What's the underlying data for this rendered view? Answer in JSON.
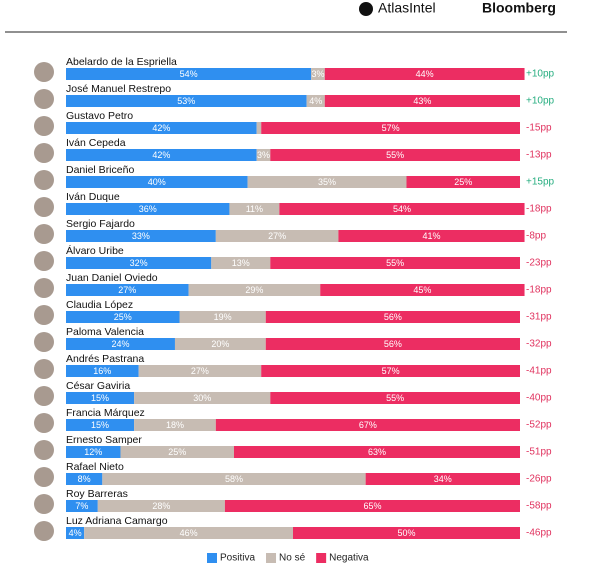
{
  "header": {
    "brand1": "AtlasIntel",
    "brand2": "Bloomberg"
  },
  "chart_data": {
    "type": "stacked-bar-horizontal",
    "categories": [
      "Abelardo de la Espriella",
      "José Manuel Restrepo",
      "Gustavo Petro",
      "Iván Cepeda",
      "Daniel Briceño",
      "Iván Duque",
      "Sergio Fajardo",
      "Álvaro Uribe",
      "Juan Daniel Oviedo",
      "Claudia López",
      "Paloma Valencia",
      "Andrés Pastrana",
      "César Gaviria",
      "Francia Márquez",
      "Ernesto Samper",
      "Rafael Nieto",
      "Roy Barreras",
      "Luz Adriana Camargo"
    ],
    "series": [
      {
        "name": "Positiva",
        "color": "#2f8ff0",
        "values": [
          54,
          53,
          42,
          42,
          40,
          36,
          33,
          32,
          27,
          25,
          24,
          16,
          15,
          15,
          12,
          8,
          7,
          4
        ],
        "value_labels": [
          "54%",
          "53%",
          "42%",
          "42%",
          "40%",
          "36%",
          "33%",
          "32%",
          "27%",
          "25%",
          "24%",
          "16%",
          "15%",
          "15%",
          "12%",
          "8%",
          "7%",
          "4%"
        ]
      },
      {
        "name": "No sé",
        "color": "#c7bcb3",
        "values": [
          3,
          4,
          1,
          3,
          35,
          11,
          27,
          13,
          29,
          19,
          20,
          27,
          30,
          18,
          25,
          58,
          28,
          46
        ],
        "value_labels": [
          "3%",
          "4%",
          null,
          "3%",
          "35%",
          "11%",
          "27%",
          "13%",
          "29%",
          "19%",
          "20%",
          "27%",
          "30%",
          "18%",
          "25%",
          "58%",
          "28%",
          "46%"
        ]
      },
      {
        "name": "Negativa",
        "color": "#ec2d62",
        "values": [
          44,
          43,
          57,
          55,
          25,
          54,
          41,
          55,
          45,
          56,
          56,
          57,
          55,
          67,
          63,
          34,
          65,
          50
        ],
        "value_labels": [
          "44%",
          "43%",
          "57%",
          "55%",
          "25%",
          "54%",
          "41%",
          "55%",
          "45%",
          "56%",
          "56%",
          "57%",
          "55%",
          "67%",
          "63%",
          "34%",
          "65%",
          "50%"
        ]
      }
    ],
    "net_labels": [
      "+10pp",
      "+10pp",
      "-15pp",
      "-13pp",
      "+15pp",
      "-18pp",
      "-8pp",
      "-23pp",
      "-18pp",
      "-31pp",
      "-32pp",
      "-41pp",
      "-40pp",
      "-52pp",
      "-51pp",
      "-26pp",
      "-58pp",
      "-46pp"
    ],
    "legend": "bottom"
  }
}
